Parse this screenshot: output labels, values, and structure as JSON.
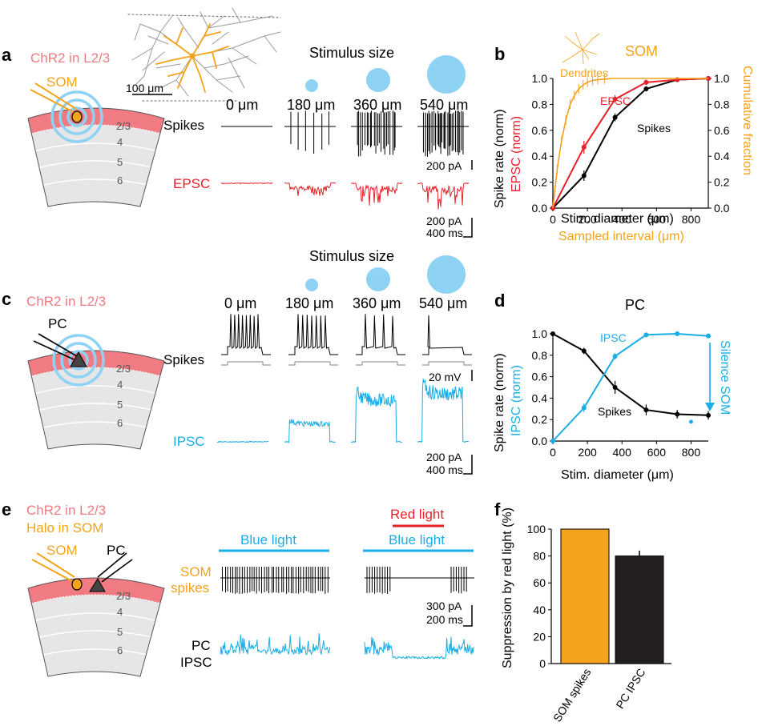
{
  "colors": {
    "red": "#e8202a",
    "blue": "#19aee6",
    "orange": "#f4a31d",
    "black": "#000000",
    "pink": "#f07b82",
    "gray": "#9a9a9a",
    "lightblue": "#8fd3f4"
  },
  "labels": {
    "a": "a",
    "b": "b",
    "c": "c",
    "d": "d",
    "e": "e",
    "f": "f",
    "chr2_l23": "ChR2 in L2/3",
    "halo_som": "Halo in SOM",
    "som": "SOM",
    "pc": "PC",
    "scale_100um": "100 μm",
    "stimulus_size": "Stimulus size",
    "spikes": "Spikes",
    "epsc": "EPSC",
    "ipsc": "IPSC",
    "layers": [
      "2/3",
      "4",
      "5",
      "6"
    ],
    "sizes": [
      "0 μm",
      "180 μm",
      "360 μm",
      "540 μm"
    ],
    "scale_200pA": "200 pA",
    "scale_400ms": "400 ms",
    "scale_20mV": "20 mV",
    "blue_light": "Blue light",
    "red_light": "Red light",
    "som_spikes_1": "SOM",
    "som_spikes_2": "spikes",
    "pc_ipsc_1": "PC",
    "pc_ipsc_2": "IPSC",
    "scale_300pA": "300 pA",
    "scale_200ms": "200 ms"
  },
  "chart_data": [
    {
      "panel": "b",
      "type": "line",
      "title": "SOM",
      "xlabel": "Stim. diameter (μm)",
      "xlabel2": "Sampled interval (μm)",
      "ylabel_left_1": "Spike rate (norm)",
      "ylabel_left_2": "EPSC (norm)",
      "ylabel_right": "Cumulative fraction",
      "xlim": [
        0,
        900
      ],
      "ylim": [
        0,
        1.0
      ],
      "xticks": [
        0,
        200,
        400,
        600,
        800
      ],
      "yticks": [
        0,
        0.2,
        0.4,
        0.6,
        0.8,
        1.0
      ],
      "series": [
        {
          "name": "Spikes",
          "x": [
            0,
            180,
            360,
            540,
            720,
            900
          ],
          "y": [
            0,
            0.25,
            0.7,
            0.92,
            0.99,
            1.0
          ],
          "err": [
            0,
            0.04,
            0.03,
            0.02,
            0.01,
            0
          ]
        },
        {
          "name": "EPSC",
          "x": [
            0,
            180,
            360,
            540,
            720,
            900
          ],
          "y": [
            0,
            0.47,
            0.84,
            0.97,
            0.99,
            1.0
          ],
          "err": [
            0,
            0.05,
            0.03,
            0.02,
            0.01,
            0
          ]
        },
        {
          "name": "Dendrites",
          "x": [
            0,
            25,
            50,
            75,
            100,
            125,
            150,
            175,
            200,
            230,
            260,
            300,
            350,
            400,
            500,
            900
          ],
          "y": [
            0,
            0.3,
            0.52,
            0.68,
            0.8,
            0.87,
            0.92,
            0.95,
            0.97,
            0.985,
            0.99,
            0.995,
            1.0,
            1.0,
            1.0,
            1.0
          ]
        }
      ]
    },
    {
      "panel": "d",
      "type": "line",
      "title": "PC",
      "xlabel": "Stim. diameter (μm)",
      "ylabel_left_1": "Spike rate (norm)",
      "ylabel_left_2": "IPSC (norm)",
      "annotation": "Silence SOM",
      "xlim": [
        0,
        900
      ],
      "ylim": [
        0,
        1.0
      ],
      "xticks": [
        0,
        200,
        400,
        600,
        800
      ],
      "yticks": [
        0,
        0.2,
        0.4,
        0.6,
        0.8,
        1.0
      ],
      "series": [
        {
          "name": "Spikes",
          "x": [
            0,
            180,
            360,
            540,
            720,
            900
          ],
          "y": [
            1.0,
            0.84,
            0.5,
            0.29,
            0.25,
            0.24
          ],
          "err": [
            0,
            0.03,
            0.06,
            0.05,
            0.04,
            0.04
          ]
        },
        {
          "name": "IPSC",
          "x": [
            0,
            180,
            360,
            540,
            720,
            900
          ],
          "y": [
            0,
            0.31,
            0.79,
            0.99,
            1.0,
            0.98
          ],
          "err": [
            0,
            0.04,
            0.03,
            0.01,
            0.01,
            0.01
          ]
        },
        {
          "name": "Silence SOM",
          "x": [
            930
          ],
          "y": [
            0.18
          ]
        }
      ]
    },
    {
      "panel": "f",
      "type": "bar",
      "ylabel": "Suppression by red light (%)",
      "ylim": [
        0,
        100
      ],
      "yticks": [
        0,
        20,
        40,
        60,
        80,
        100
      ],
      "categories": [
        "SOM spikes",
        "PC IPSC"
      ],
      "values": [
        100,
        80
      ],
      "errors": [
        0,
        4
      ],
      "bar_colors": [
        "#f4a31d",
        "#231f20"
      ]
    }
  ]
}
